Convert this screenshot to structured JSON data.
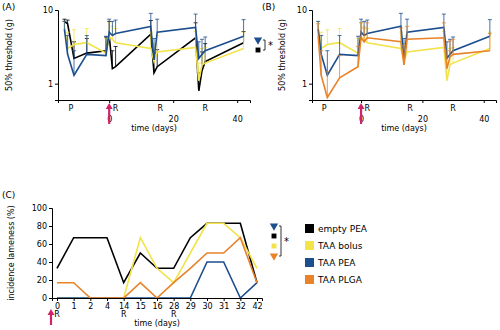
{
  "chart_data": [
    {
      "type": "line",
      "title": "(A)",
      "x_label": "time (days)",
      "y_label": "50% threshold (g)",
      "log": "y",
      "xlim": [
        -16,
        44
      ],
      "xticks": [
        0,
        20,
        40
      ],
      "ylim": [
        0.6,
        10
      ],
      "yticks": [
        1,
        10
      ],
      "x": [
        -14,
        -13,
        -11,
        -7,
        -1,
        0,
        1,
        2,
        13,
        14,
        15,
        27,
        28,
        29,
        30,
        42
      ],
      "series": [
        {
          "name": "empty PEA",
          "color": "#000000",
          "marker": "square",
          "values": [
            7,
            6.5,
            2.2,
            2.6,
            2.8,
            4.5,
            1.6,
            1.7,
            4.7,
            1.4,
            1.7,
            4.2,
            0.8,
            1.5,
            2.0,
            3.6
          ],
          "errors": [
            0.5,
            0.8,
            1.5,
            1.5,
            1.5,
            2.5,
            1.2,
            1.5,
            2.5,
            1.2,
            1.2,
            2.5,
            0.6,
            1.2,
            1.5,
            1.5
          ]
        },
        {
          "name": "TAA bolus",
          "color": "#f2e34a",
          "values": [
            6,
            3,
            3.4,
            3.6,
            2.6,
            4.3,
            4.0,
            3.6,
            3.0,
            2.0,
            2.7,
            3.1,
            1.1,
            1.8,
            1.9,
            3.0
          ],
          "errors": [
            1,
            2,
            2,
            2,
            1.5,
            2.5,
            2,
            2,
            2,
            1.5,
            1.8,
            2,
            0.8,
            1.2,
            1.2,
            2
          ]
        },
        {
          "name": "TAA PEA",
          "color": "#1d4f8f",
          "marker": "triangle",
          "values": [
            5.5,
            2.5,
            1.3,
            2.5,
            2.4,
            5.0,
            4.5,
            4.8,
            6.0,
            2.1,
            5.0,
            5.8,
            2.2,
            2.5,
            2.8,
            4.4
          ],
          "errors": [
            1.5,
            2,
            1.5,
            2,
            2,
            2.5,
            2.5,
            2.5,
            3,
            2,
            2.5,
            3,
            1.5,
            1.5,
            1.5,
            3
          ]
        }
      ],
      "phase_labels": [
        {
          "text": "P",
          "x": -12
        },
        {
          "text": "R",
          "x": 2
        },
        {
          "text": "R",
          "x": 16
        },
        {
          "text": "R",
          "x": 30
        }
      ],
      "arrows": [
        {
          "x": 0,
          "color": "#d1226b"
        }
      ],
      "significance": {
        "text": "*",
        "series": [
          2,
          0
        ]
      }
    },
    {
      "type": "line",
      "title": "(B)",
      "x_label": "time (days)",
      "y_label": "50% threshold (g)",
      "log": "y",
      "xlim": [
        -16,
        44
      ],
      "xticks": [
        0,
        20,
        40
      ],
      "ylim": [
        0.6,
        10
      ],
      "yticks": [
        1,
        10
      ],
      "x": [
        -14,
        -13,
        -11,
        -7,
        -1,
        0,
        1,
        2,
        13,
        14,
        15,
        27,
        28,
        29,
        30,
        42
      ],
      "series": [
        {
          "name": "TAA bolus",
          "color": "#f2e34a",
          "values": [
            6,
            3,
            3.4,
            3.6,
            2.6,
            4.3,
            4.0,
            3.6,
            3.0,
            2.0,
            2.7,
            3.1,
            1.1,
            1.8,
            1.9,
            3.0
          ],
          "errors": [
            1,
            2,
            2,
            2,
            1.5,
            2.5,
            2,
            2,
            2,
            1.5,
            1.8,
            2,
            0.8,
            1.2,
            1.2,
            2
          ]
        },
        {
          "name": "TAA PEA",
          "color": "#1d4f8f",
          "values": [
            5.5,
            2.5,
            1.3,
            2.5,
            2.4,
            5.0,
            4.5,
            4.8,
            6.0,
            2.1,
            5.0,
            5.8,
            2.2,
            2.5,
            2.8,
            4.4
          ],
          "errors": [
            1.5,
            2,
            1.5,
            2,
            2,
            2.5,
            2.5,
            2.5,
            3,
            2,
            2.5,
            3,
            1.5,
            1.5,
            1.5,
            3
          ]
        },
        {
          "name": "TAA PLGA",
          "color": "#e8832a",
          "values": [
            4.5,
            1.3,
            0.65,
            1.2,
            1.7,
            4.2,
            3.7,
            4.2,
            3.7,
            1.8,
            4.0,
            4.2,
            1.6,
            2.3,
            2.5,
            2.8
          ],
          "errors": [
            2,
            1.5,
            0.8,
            1.2,
            1.5,
            2.5,
            2,
            2.5,
            2,
            1.5,
            2,
            2.5,
            1.2,
            1.5,
            1.5,
            2
          ]
        }
      ],
      "phase_labels": [
        {
          "text": "P",
          "x": -12
        },
        {
          "text": "R",
          "x": 2
        },
        {
          "text": "R",
          "x": 16
        },
        {
          "text": "R",
          "x": 30
        }
      ],
      "arrows": [
        {
          "x": 0,
          "color": "#d1226b"
        }
      ]
    },
    {
      "type": "line",
      "title": "(C)",
      "x_label": "time (days)",
      "y_label": "incidence lameness (%)",
      "categories": [
        0,
        1,
        2,
        4,
        14,
        15,
        16,
        28,
        29,
        30,
        31,
        32,
        42
      ],
      "ylim": [
        0,
        100
      ],
      "yticks": [
        0,
        20,
        40,
        60,
        80,
        100
      ],
      "legend": "right",
      "series": [
        {
          "name": "empty PEA",
          "color": "#000000",
          "marker": "square",
          "values": [
            33,
            67,
            67,
            67,
            17,
            50,
            33,
            33,
            67,
            83,
            83,
            83,
            17
          ]
        },
        {
          "name": "TAA bolus",
          "color": "#f2e34a",
          "marker": "square",
          "values": [
            0,
            0,
            0,
            0,
            0,
            67,
            33,
            17,
            50,
            83,
            83,
            67,
            33
          ]
        },
        {
          "name": "TAA PEA",
          "color": "#1d4f8f",
          "marker": "triangle",
          "values": [
            0,
            0,
            0,
            0,
            0,
            0,
            0,
            0,
            0,
            40,
            40,
            0,
            17
          ]
        },
        {
          "name": "TAA PLGA",
          "color": "#e8832a",
          "marker": "triangle",
          "values": [
            17,
            17,
            0,
            0,
            0,
            17,
            0,
            17,
            33,
            50,
            50,
            67,
            17
          ]
        }
      ],
      "phase_labels": [
        {
          "text": "R",
          "x": 0
        },
        {
          "text": "R",
          "x": 14
        },
        {
          "text": "R",
          "x": 28
        }
      ],
      "arrows": [
        {
          "x": 0,
          "color": "#d1226b"
        }
      ],
      "significance": {
        "text": "*",
        "series": [
          2,
          0,
          1,
          3
        ]
      }
    }
  ]
}
